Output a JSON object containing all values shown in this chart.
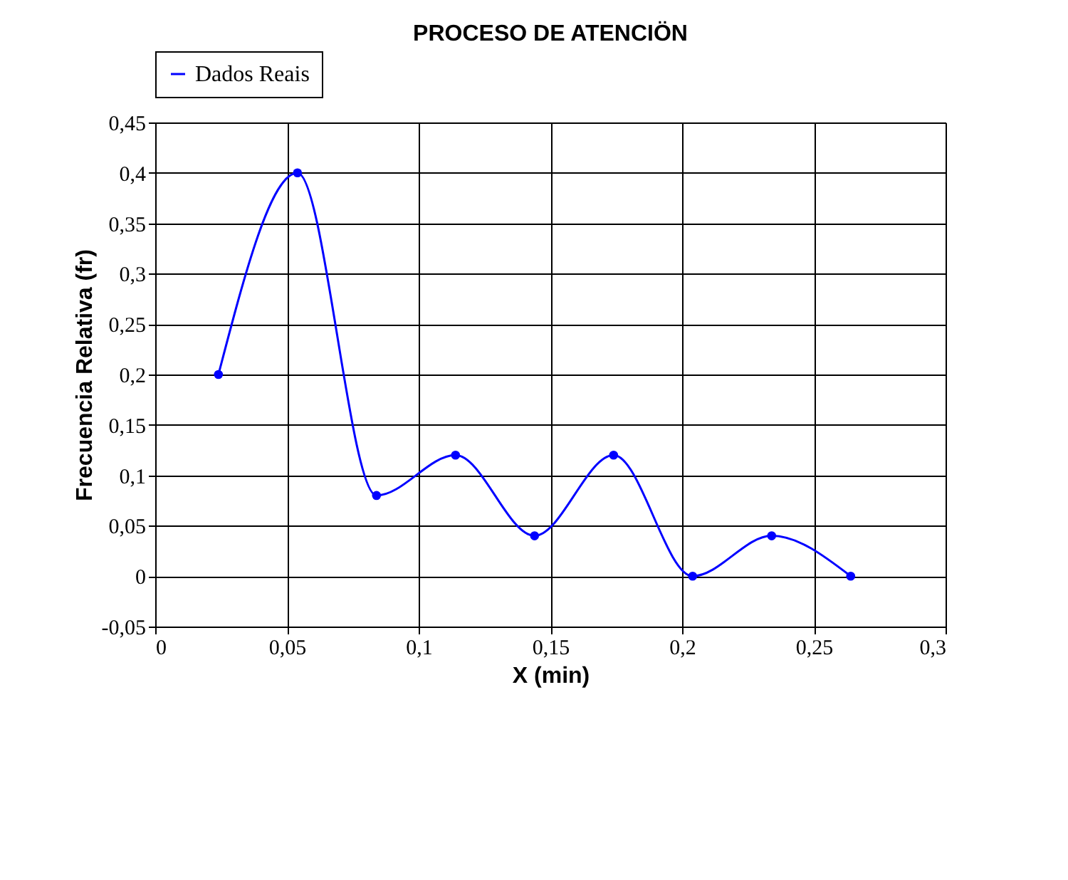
{
  "chart_data": {
    "type": "line",
    "title": "PROCESO DE ATENCIÖN",
    "xlabel": "X (min)",
    "ylabel": "Frecuencia Relativa (fr)",
    "x": [
      0.024,
      0.054,
      0.084,
      0.114,
      0.144,
      0.174,
      0.204,
      0.234,
      0.264
    ],
    "series": [
      {
        "name": "Dados Reais",
        "color": "#0000ff",
        "values": [
          0.2,
          0.4,
          0.08,
          0.12,
          0.04,
          0.12,
          0,
          0.04,
          0
        ]
      }
    ],
    "xlim": [
      0,
      0.3
    ],
    "xticks": [
      0,
      {
        "value": 0.05,
        "label": "0,05"
      },
      {
        "value": 0.1,
        "label": "0,1"
      },
      {
        "value": 0.15,
        "label": "0,15"
      },
      {
        "value": 0.2,
        "label": "0,2"
      },
      {
        "value": 0.25,
        "label": "0,25"
      },
      {
        "value": 0.3,
        "label": "0,3"
      }
    ],
    "ylim": [
      -0.05,
      0.45
    ],
    "yticks": [
      {
        "value": -0.05,
        "label": "-0,05"
      },
      0,
      {
        "value": 0.05,
        "label": "0,05"
      },
      {
        "value": 0.1,
        "label": "0,1"
      },
      {
        "value": 0.15,
        "label": "0,15"
      },
      {
        "value": 0.2,
        "label": "0,2"
      },
      {
        "value": 0.25,
        "label": "0,25"
      },
      {
        "value": 0.3,
        "label": "0,3"
      },
      {
        "value": 0.35,
        "label": "0,35"
      },
      {
        "value": 0.4,
        "label": "0,4"
      },
      {
        "value": 0.45,
        "label": "0,45"
      }
    ],
    "grid": true,
    "legend": "top",
    "marker": "circle",
    "line_style": "solid"
  }
}
